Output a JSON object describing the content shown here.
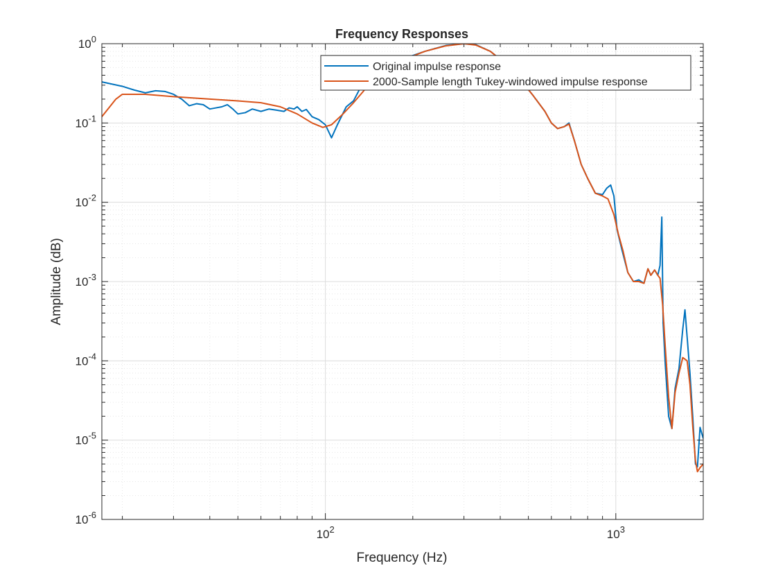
{
  "chart_data": {
    "type": "line",
    "title": "Frequency Responses",
    "xlabel": "Frequency (Hz)",
    "ylabel": "Amplitude (dB)",
    "xscale": "log",
    "yscale": "log",
    "xlim": [
      17,
      2000
    ],
    "ylim": [
      1e-06,
      1
    ],
    "grid": "on (major and minor)",
    "legend_location": "top-right",
    "x_ticks": [
      {
        "value": 100,
        "base": "10",
        "exp": "2"
      },
      {
        "value": 1000,
        "base": "10",
        "exp": "3"
      }
    ],
    "y_ticks": [
      {
        "value": 1e-06,
        "base": "10",
        "exp": "-6"
      },
      {
        "value": 1e-05,
        "base": "10",
        "exp": "-5"
      },
      {
        "value": 0.0001,
        "base": "10",
        "exp": "-4"
      },
      {
        "value": 0.001,
        "base": "10",
        "exp": "-3"
      },
      {
        "value": 0.01,
        "base": "10",
        "exp": "-2"
      },
      {
        "value": 0.1,
        "base": "10",
        "exp": "-1"
      },
      {
        "value": 1,
        "base": "10",
        "exp": "0"
      }
    ],
    "series": [
      {
        "name": "Original impulse response",
        "color": "#0072BD",
        "points": [
          [
            17,
            0.33
          ],
          [
            20,
            0.29
          ],
          [
            22,
            0.26
          ],
          [
            24,
            0.24
          ],
          [
            26,
            0.255
          ],
          [
            28,
            0.25
          ],
          [
            30,
            0.23
          ],
          [
            32,
            0.2
          ],
          [
            34,
            0.165
          ],
          [
            36,
            0.175
          ],
          [
            38,
            0.17
          ],
          [
            40,
            0.15
          ],
          [
            42,
            0.155
          ],
          [
            44,
            0.16
          ],
          [
            46,
            0.17
          ],
          [
            48,
            0.15
          ],
          [
            50,
            0.13
          ],
          [
            53,
            0.135
          ],
          [
            56,
            0.15
          ],
          [
            60,
            0.14
          ],
          [
            64,
            0.15
          ],
          [
            68,
            0.145
          ],
          [
            72,
            0.14
          ],
          [
            75,
            0.155
          ],
          [
            78,
            0.15
          ],
          [
            80,
            0.16
          ],
          [
            83,
            0.14
          ],
          [
            86,
            0.148
          ],
          [
            90,
            0.12
          ],
          [
            95,
            0.11
          ],
          [
            100,
            0.095
          ],
          [
            105,
            0.065
          ],
          [
            110,
            0.095
          ],
          [
            118,
            0.16
          ],
          [
            125,
            0.19
          ],
          [
            130,
            0.25
          ],
          [
            135,
            0.33
          ],
          [
            150,
            0.45
          ],
          [
            180,
            0.62
          ],
          [
            220,
            0.8
          ],
          [
            260,
            0.95
          ],
          [
            300,
            1.0
          ],
          [
            330,
            0.97
          ],
          [
            370,
            0.8
          ],
          [
            420,
            0.55
          ],
          [
            470,
            0.35
          ],
          [
            520,
            0.22
          ],
          [
            570,
            0.14
          ],
          [
            600,
            0.1
          ],
          [
            630,
            0.085
          ],
          [
            665,
            0.09
          ],
          [
            690,
            0.1
          ],
          [
            720,
            0.06
          ],
          [
            760,
            0.03
          ],
          [
            800,
            0.02
          ],
          [
            850,
            0.013
          ],
          [
            900,
            0.0125
          ],
          [
            930,
            0.015
          ],
          [
            960,
            0.0165
          ],
          [
            985,
            0.012
          ],
          [
            1010,
            0.0045
          ],
          [
            1050,
            0.0025
          ],
          [
            1100,
            0.0013
          ],
          [
            1150,
            0.001
          ],
          [
            1200,
            0.00105
          ],
          [
            1250,
            0.00095
          ],
          [
            1290,
            0.00145
          ],
          [
            1320,
            0.0012
          ],
          [
            1360,
            0.0014
          ],
          [
            1395,
            0.0012
          ],
          [
            1420,
            0.0016
          ],
          [
            1440,
            0.0065
          ],
          [
            1455,
            0.0003
          ],
          [
            1480,
            9e-05
          ],
          [
            1520,
            2e-05
          ],
          [
            1560,
            1.4e-05
          ],
          [
            1600,
            4.5e-05
          ],
          [
            1650,
            8e-05
          ],
          [
            1700,
            0.00025
          ],
          [
            1730,
            0.00044
          ],
          [
            1760,
            0.0002
          ],
          [
            1800,
            7e-05
          ],
          [
            1840,
            2e-05
          ],
          [
            1880,
            5e-06
          ],
          [
            1910,
            4.6e-06
          ],
          [
            1950,
            1.45e-05
          ],
          [
            2000,
            1.05e-05
          ]
        ]
      },
      {
        "name": "2000-Sample length Tukey-windowed impulse response",
        "color": "#D95319",
        "points": [
          [
            17,
            0.12
          ],
          [
            19,
            0.2
          ],
          [
            20,
            0.23
          ],
          [
            24,
            0.23
          ],
          [
            30,
            0.215
          ],
          [
            40,
            0.2
          ],
          [
            50,
            0.19
          ],
          [
            60,
            0.18
          ],
          [
            70,
            0.16
          ],
          [
            80,
            0.13
          ],
          [
            90,
            0.1
          ],
          [
            98,
            0.088
          ],
          [
            105,
            0.095
          ],
          [
            115,
            0.13
          ],
          [
            125,
            0.18
          ],
          [
            135,
            0.25
          ],
          [
            150,
            0.4
          ],
          [
            180,
            0.6
          ],
          [
            220,
            0.8
          ],
          [
            260,
            0.94
          ],
          [
            300,
            1.0
          ],
          [
            330,
            0.96
          ],
          [
            370,
            0.8
          ],
          [
            420,
            0.55
          ],
          [
            470,
            0.35
          ],
          [
            520,
            0.22
          ],
          [
            570,
            0.14
          ],
          [
            600,
            0.1
          ],
          [
            630,
            0.085
          ],
          [
            665,
            0.09
          ],
          [
            690,
            0.097
          ],
          [
            720,
            0.06
          ],
          [
            760,
            0.03
          ],
          [
            800,
            0.02
          ],
          [
            850,
            0.013
          ],
          [
            900,
            0.012
          ],
          [
            940,
            0.011
          ],
          [
            985,
            0.007
          ],
          [
            1020,
            0.004
          ],
          [
            1060,
            0.0024
          ],
          [
            1100,
            0.0013
          ],
          [
            1150,
            0.001
          ],
          [
            1200,
            0.001
          ],
          [
            1250,
            0.00095
          ],
          [
            1290,
            0.00145
          ],
          [
            1320,
            0.0012
          ],
          [
            1360,
            0.0014
          ],
          [
            1395,
            0.0012
          ],
          [
            1420,
            0.0011
          ],
          [
            1450,
            0.0005
          ],
          [
            1480,
            0.00015
          ],
          [
            1520,
            3.5e-05
          ],
          [
            1560,
            1.4e-05
          ],
          [
            1600,
            4e-05
          ],
          [
            1650,
            7e-05
          ],
          [
            1700,
            0.00011
          ],
          [
            1730,
            0.000105
          ],
          [
            1760,
            0.0001
          ],
          [
            1800,
            5e-05
          ],
          [
            1840,
            1.5e-05
          ],
          [
            1880,
            5.5e-06
          ],
          [
            1910,
            4e-06
          ],
          [
            1950,
            4.5e-06
          ],
          [
            2000,
            5e-06
          ]
        ]
      }
    ]
  }
}
